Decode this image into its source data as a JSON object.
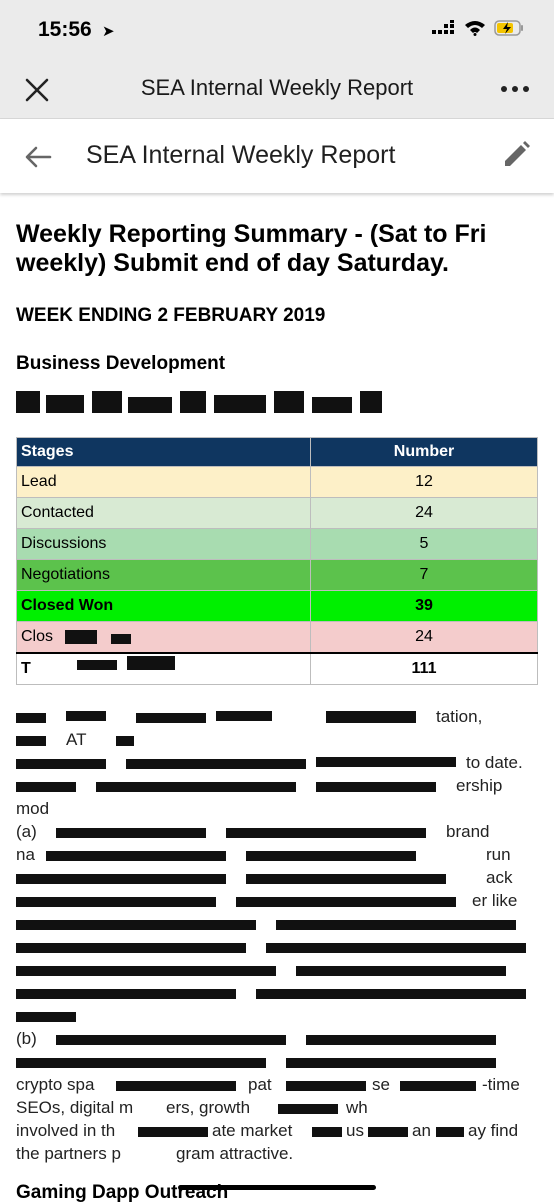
{
  "status": {
    "time": "15:56"
  },
  "topbar": {
    "title": "SEA Internal Weekly Report"
  },
  "docbar": {
    "title": "SEA Internal Weekly Report"
  },
  "doc": {
    "heading": "Weekly Reporting Summary - (Sat to Fri weekly) Submit end of day Saturday.",
    "week": "WEEK ENDING 2 FEBRUARY 2019",
    "section1": "Business Development",
    "section2": "Gaming Dapp Outreach"
  },
  "table": {
    "headers": [
      "Stages",
      "Number"
    ],
    "rows": [
      {
        "stage": "Lead",
        "number": "12",
        "color": "#fdf0c8"
      },
      {
        "stage": "Contacted",
        "number": "24",
        "color": "#d8ead3"
      },
      {
        "stage": "Discussions",
        "number": "5",
        "color": "#a8dcb0"
      },
      {
        "stage": "Negotiations",
        "number": "7",
        "color": "#5cc24c"
      },
      {
        "stage": "Closed Won",
        "number": "39",
        "color": "#00f000"
      },
      {
        "stage": "Clos",
        "number": "24",
        "color": "#f4cccc"
      },
      {
        "stage": "T",
        "number": "111",
        "color": "#ffffff"
      }
    ]
  },
  "paragraph": {
    "fragments": [
      "tation,",
      "AT",
      "to date.",
      "ership",
      "mod",
      "(a)",
      "brand",
      "na",
      "run",
      "ack",
      "er like",
      "(b)",
      "crypto spa",
      "pat",
      "se",
      "-time",
      "SEOs, digital m",
      "ers, growth",
      "wh",
      "involved in th",
      "ate market",
      "us",
      "an",
      "ay find",
      "the partners p",
      "gram attractive."
    ]
  },
  "colors": {
    "table_header": "#0f3660"
  }
}
